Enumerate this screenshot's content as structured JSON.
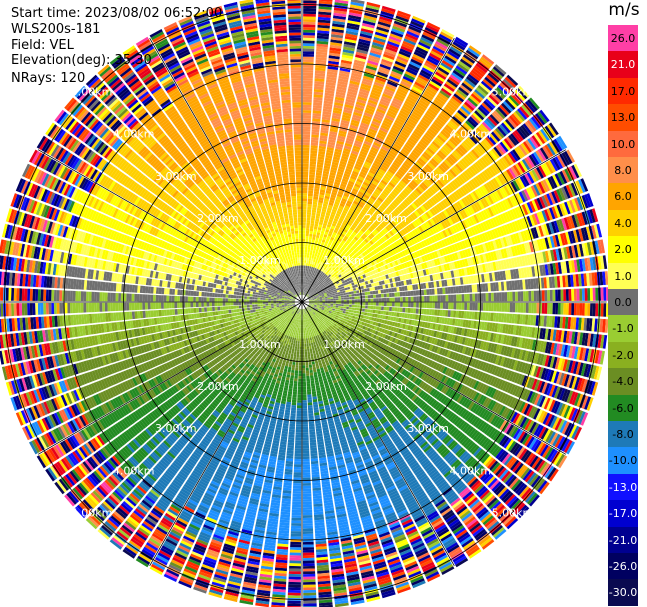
{
  "header": {
    "start_time": "Start time: 2023/08/02 06:52:00",
    "instrument": "WLS200s-181",
    "field": "Field: VEL",
    "elevation": "Elevation(deg): 35.30",
    "nrays": "NRays: 120"
  },
  "colorbar": {
    "unit": "m/s",
    "levels": [
      {
        "label": "26.0",
        "color": "#ff3fa6",
        "text": "#000000"
      },
      {
        "label": "21.0",
        "color": "#e8001a",
        "text": "#ffffff"
      },
      {
        "label": "17.0",
        "color": "#ff2a00",
        "text": "#000000"
      },
      {
        "label": "13.0",
        "color": "#ff4d00",
        "text": "#000000"
      },
      {
        "label": "10.0",
        "color": "#ff6a3d",
        "text": "#000000"
      },
      {
        "label": "8.0",
        "color": "#ff8f4a",
        "text": "#000000"
      },
      {
        "label": "6.0",
        "color": "#ffa500",
        "text": "#000000"
      },
      {
        "label": "4.0",
        "color": "#ffd000",
        "text": "#000000"
      },
      {
        "label": "2.0",
        "color": "#ffff00",
        "text": "#000000"
      },
      {
        "label": "1.0",
        "color": "#ffff55",
        "text": "#000000"
      },
      {
        "label": "0.0",
        "color": "#707070",
        "text": "#000000"
      },
      {
        "label": "-1.0",
        "color": "#9acd32",
        "text": "#000000"
      },
      {
        "label": "-2.0",
        "color": "#8ab020",
        "text": "#000000"
      },
      {
        "label": "-4.0",
        "color": "#6b8e23",
        "text": "#000000"
      },
      {
        "label": "-6.0",
        "color": "#228b22",
        "text": "#000000"
      },
      {
        "label": "-8.0",
        "color": "#1e7ab8",
        "text": "#000000"
      },
      {
        "label": "-10.0",
        "color": "#1e90ff",
        "text": "#000000"
      },
      {
        "label": "-13.0",
        "color": "#1010ff",
        "text": "#ffffff"
      },
      {
        "label": "-17.0",
        "color": "#0000d0",
        "text": "#ffffff"
      },
      {
        "label": "-21.0",
        "color": "#000090",
        "text": "#ffffff"
      },
      {
        "label": "-26.0",
        "color": "#000060",
        "text": "#ffffff"
      },
      {
        "label": "-30.0",
        "color": "#0a0a50",
        "text": "#ffffff"
      }
    ]
  },
  "chart_data": {
    "type": "heatmap",
    "projection": "polar PPI",
    "field": "VEL",
    "units": "m/s",
    "elevation_deg": 35.3,
    "n_rays": 120,
    "range_ring_labels_km": [
      "1.00km",
      "2.00km",
      "3.00km",
      "4.00km",
      "5.00km"
    ],
    "range_rings_km": [
      1,
      2,
      3,
      4,
      5
    ],
    "velocity_pattern": {
      "positive_direction": "north",
      "negative_direction": "south",
      "near_zero": "east-west axis",
      "noisy_beyond_km": 4.3
    }
  }
}
